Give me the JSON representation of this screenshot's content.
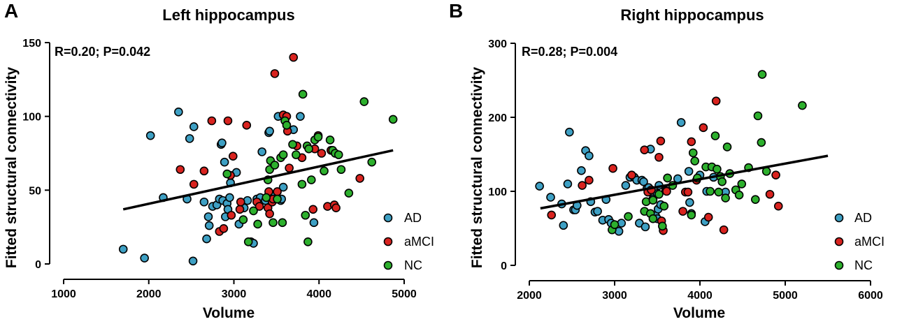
{
  "chart_data": [
    {
      "type": "scatter",
      "panel_letter": "A",
      "title": "Left hippocampus",
      "stat_text": "R=0.20; P=0.042",
      "xlabel": "Volume",
      "ylabel": "Fitted structural connectivity",
      "xlim": [
        1000,
        5000
      ],
      "ylim": [
        0,
        150
      ],
      "xticks": [
        1000,
        2000,
        3000,
        4000,
        5000
      ],
      "yticks": [
        0,
        50,
        100,
        150
      ],
      "fit_line": {
        "x": [
          1700,
          4870
        ],
        "y": [
          37,
          77
        ]
      },
      "legend": [
        "AD",
        "aMCI",
        "NC"
      ],
      "colors": {
        "AD": "#3ea0c4",
        "aMCI": "#d9231f",
        "NC": "#2db02d"
      },
      "series": [
        {
          "name": "AD",
          "points": [
            [
              1700,
              10
            ],
            [
              1950,
              4
            ],
            [
              2020,
              87
            ],
            [
              2170,
              45
            ],
            [
              2350,
              103
            ],
            [
              2450,
              44
            ],
            [
              2480,
              85
            ],
            [
              2530,
              93
            ],
            [
              2520,
              2
            ],
            [
              2650,
              42
            ],
            [
              2680,
              17
            ],
            [
              2700,
              32
            ],
            [
              2710,
              26
            ],
            [
              2750,
              39
            ],
            [
              2800,
              40
            ],
            [
              2830,
              44
            ],
            [
              2850,
              81
            ],
            [
              2860,
              82
            ],
            [
              2870,
              43
            ],
            [
              2890,
              69
            ],
            [
              2900,
              32
            ],
            [
              2920,
              41
            ],
            [
              2930,
              37
            ],
            [
              2950,
              45
            ],
            [
              2960,
              55
            ],
            [
              3030,
              62
            ],
            [
              3060,
              27
            ],
            [
              3120,
              38
            ],
            [
              3160,
              43
            ],
            [
              3200,
              15
            ],
            [
              3230,
              14
            ],
            [
              3270,
              44
            ],
            [
              3310,
              45
            ],
            [
              3330,
              76
            ],
            [
              3370,
              43
            ],
            [
              3410,
              89
            ],
            [
              3420,
              90
            ],
            [
              3450,
              45
            ],
            [
              3480,
              47
            ],
            [
              3520,
              100
            ],
            [
              3550,
              43
            ],
            [
              3560,
              44
            ],
            [
              3580,
              52
            ],
            [
              3700,
              91
            ],
            [
              3780,
              100
            ],
            [
              3940,
              28
            ]
          ]
        },
        {
          "name": "aMCI",
          "points": [
            [
              2370,
              64
            ],
            [
              2530,
              54
            ],
            [
              2650,
              63
            ],
            [
              2740,
              97
            ],
            [
              2830,
              22
            ],
            [
              2880,
              24
            ],
            [
              2930,
              97
            ],
            [
              2960,
              60
            ],
            [
              2970,
              33
            ],
            [
              2990,
              73
            ],
            [
              3070,
              37
            ],
            [
              3080,
              42
            ],
            [
              3150,
              94
            ],
            [
              3270,
              42
            ],
            [
              3300,
              39
            ],
            [
              3400,
              38
            ],
            [
              3410,
              49
            ],
            [
              3420,
              34
            ],
            [
              3450,
              42
            ],
            [
              3460,
              44
            ],
            [
              3480,
              129
            ],
            [
              3510,
              49
            ],
            [
              3580,
              101
            ],
            [
              3620,
              100
            ],
            [
              3630,
              90
            ],
            [
              3650,
              65
            ],
            [
              3700,
              140
            ],
            [
              3740,
              80
            ],
            [
              3800,
              72
            ],
            [
              3930,
              37
            ],
            [
              3950,
              78
            ],
            [
              3990,
              87
            ],
            [
              4030,
              75
            ],
            [
              4100,
              39
            ],
            [
              4140,
              77
            ],
            [
              4180,
              40
            ],
            [
              4200,
              38
            ],
            [
              4480,
              58
            ]
          ]
        },
        {
          "name": "NC",
          "points": [
            [
              2920,
              61
            ],
            [
              3110,
              30
            ],
            [
              3170,
              15
            ],
            [
              3230,
              36
            ],
            [
              3280,
              27
            ],
            [
              3380,
              45
            ],
            [
              3400,
              57
            ],
            [
              3420,
              64
            ],
            [
              3430,
              70
            ],
            [
              3460,
              28
            ],
            [
              3480,
              67
            ],
            [
              3510,
              44
            ],
            [
              3550,
              72
            ],
            [
              3570,
              28
            ],
            [
              3580,
              74
            ],
            [
              3600,
              97
            ],
            [
              3620,
              94
            ],
            [
              3690,
              81
            ],
            [
              3730,
              74
            ],
            [
              3800,
              54
            ],
            [
              3810,
              115
            ],
            [
              3840,
              33
            ],
            [
              3860,
              80
            ],
            [
              3870,
              15
            ],
            [
              3880,
              78
            ],
            [
              3910,
              57
            ],
            [
              3950,
              84
            ],
            [
              3990,
              86
            ],
            [
              4060,
              63
            ],
            [
              4130,
              84
            ],
            [
              4160,
              77
            ],
            [
              4190,
              75
            ],
            [
              4230,
              74
            ],
            [
              4260,
              64
            ],
            [
              4350,
              48
            ],
            [
              4530,
              110
            ],
            [
              4620,
              69
            ],
            [
              4870,
              98
            ]
          ]
        }
      ]
    },
    {
      "type": "scatter",
      "panel_letter": "B",
      "title": "Right hippocampus",
      "stat_text": "R=0.28; P=0.004",
      "xlabel": "Volume",
      "ylabel": "Fitted structural connectivity",
      "xlim": [
        2000,
        6000
      ],
      "ylim": [
        0,
        300
      ],
      "xticks": [
        2000,
        3000,
        4000,
        5000,
        6000
      ],
      "yticks": [
        0,
        100,
        200,
        300
      ],
      "fit_line": {
        "x": [
          2130,
          5500
        ],
        "y": [
          77,
          148
        ]
      },
      "legend": [
        "AD",
        "aMCI",
        "NC"
      ],
      "colors": {
        "AD": "#3ea0c4",
        "aMCI": "#d9231f",
        "NC": "#2db02d"
      },
      "series": [
        {
          "name": "AD",
          "points": [
            [
              2120,
              107
            ],
            [
              2250,
              92
            ],
            [
              2380,
              83
            ],
            [
              2400,
              54
            ],
            [
              2450,
              110
            ],
            [
              2470,
              180
            ],
            [
              2520,
              75
            ],
            [
              2540,
              75
            ],
            [
              2560,
              81
            ],
            [
              2610,
              128
            ],
            [
              2660,
              155
            ],
            [
              2700,
              148
            ],
            [
              2720,
              86
            ],
            [
              2770,
              72
            ],
            [
              2800,
              73
            ],
            [
              2860,
              61
            ],
            [
              2900,
              89
            ],
            [
              2930,
              62
            ],
            [
              2960,
              57
            ],
            [
              3050,
              46
            ],
            [
              3080,
              57
            ],
            [
              3130,
              108
            ],
            [
              3180,
              119
            ],
            [
              3230,
              119
            ],
            [
              3260,
              115
            ],
            [
              3290,
              57
            ],
            [
              3320,
              115
            ],
            [
              3340,
              113
            ],
            [
              3360,
              52
            ],
            [
              3380,
              104
            ],
            [
              3400,
              105
            ],
            [
              3420,
              157
            ],
            [
              3450,
              90
            ],
            [
              3460,
              64
            ],
            [
              3480,
              67
            ],
            [
              3500,
              63
            ],
            [
              3500,
              97
            ],
            [
              3510,
              76
            ],
            [
              3520,
              108
            ],
            [
              3540,
              82
            ],
            [
              3600,
              101
            ],
            [
              3740,
              117
            ],
            [
              3780,
              193
            ],
            [
              3870,
              127
            ],
            [
              3880,
              85
            ],
            [
              3900,
              70
            ],
            [
              4000,
              122
            ],
            [
              4060,
              59
            ],
            [
              4080,
              100
            ],
            [
              4160,
              119
            ],
            [
              4300,
              99
            ]
          ]
        },
        {
          "name": "aMCI",
          "points": [
            [
              2260,
              68
            ],
            [
              2620,
              108
            ],
            [
              2700,
              115
            ],
            [
              2980,
              131
            ],
            [
              3200,
              122
            ],
            [
              3350,
              156
            ],
            [
              3390,
              99
            ],
            [
              3430,
              102
            ],
            [
              3520,
              146
            ],
            [
              3540,
              168
            ],
            [
              3550,
              60
            ],
            [
              3570,
              47
            ],
            [
              3610,
              100
            ],
            [
              3620,
              118
            ],
            [
              3800,
              73
            ],
            [
              3830,
              99
            ],
            [
              3860,
              99
            ],
            [
              3900,
              167
            ],
            [
              3960,
              115
            ],
            [
              4040,
              186
            ],
            [
              4100,
              65
            ],
            [
              4190,
              222
            ],
            [
              4280,
              48
            ],
            [
              4820,
              96
            ],
            [
              4890,
              122
            ],
            [
              4920,
              80
            ]
          ]
        },
        {
          "name": "NC",
          "points": [
            [
              2970,
              48
            ],
            [
              3000,
              55
            ],
            [
              3160,
              66
            ],
            [
              3350,
              73
            ],
            [
              3370,
              86
            ],
            [
              3420,
              70
            ],
            [
              3450,
              88
            ],
            [
              3450,
              63
            ],
            [
              3520,
              96
            ],
            [
              3560,
              53
            ],
            [
              3580,
              80
            ],
            [
              3620,
              118
            ],
            [
              3680,
              108
            ],
            [
              3900,
              68
            ],
            [
              3920,
              152
            ],
            [
              3940,
              141
            ],
            [
              3970,
              118
            ],
            [
              4070,
              133
            ],
            [
              4120,
              100
            ],
            [
              4140,
              133
            ],
            [
              4180,
              175
            ],
            [
              4200,
              130
            ],
            [
              4220,
              99
            ],
            [
              4240,
              120
            ],
            [
              4260,
              113
            ],
            [
              4300,
              91
            ],
            [
              4320,
              160
            ],
            [
              4350,
              124
            ],
            [
              4420,
              102
            ],
            [
              4460,
              95
            ],
            [
              4490,
              110
            ],
            [
              4570,
              132
            ],
            [
              4650,
              89
            ],
            [
              4680,
              202
            ],
            [
              4720,
              166
            ],
            [
              4730,
              258
            ],
            [
              4780,
              127
            ],
            [
              5200,
              216
            ]
          ]
        }
      ]
    }
  ]
}
